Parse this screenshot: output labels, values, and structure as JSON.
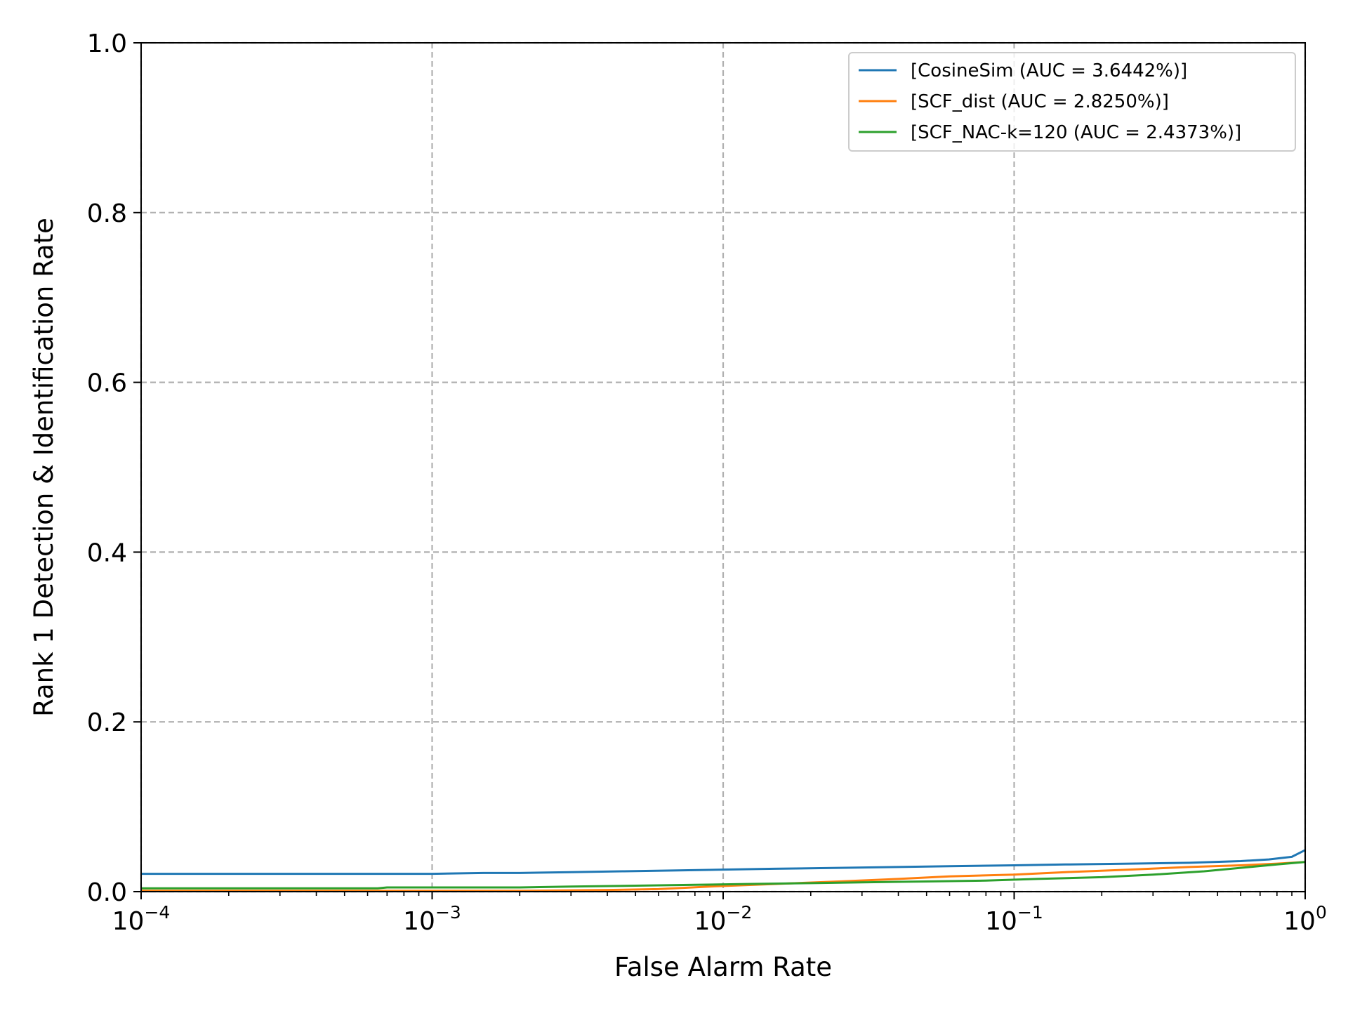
{
  "chart_data": {
    "type": "line",
    "title": "",
    "xlabel": "False Alarm Rate",
    "ylabel": "Rank 1 Detection & Identification Rate",
    "xscale": "log",
    "xlim": [
      0.0001,
      1
    ],
    "ylim": [
      0.0,
      1.0
    ],
    "x_ticks": [
      {
        "value": 0.0001,
        "base": "10",
        "exp": "−4"
      },
      {
        "value": 0.001,
        "base": "10",
        "exp": "−3"
      },
      {
        "value": 0.01,
        "base": "10",
        "exp": "−2"
      },
      {
        "value": 0.1,
        "base": "10",
        "exp": "−1"
      },
      {
        "value": 1,
        "base": "10",
        "exp": "0"
      }
    ],
    "y_ticks": [
      {
        "value": 0.0,
        "label": "0.0"
      },
      {
        "value": 0.2,
        "label": "0.2"
      },
      {
        "value": 0.4,
        "label": "0.4"
      },
      {
        "value": 0.6,
        "label": "0.6"
      },
      {
        "value": 0.8,
        "label": "0.8"
      },
      {
        "value": 1.0,
        "label": "1.0"
      }
    ],
    "grid": true,
    "legend_position": "top-right",
    "series": [
      {
        "name": "[CosineSim (AUC = 3.6442%)]",
        "color": "#1f77b4",
        "x": [
          0.0001,
          0.0003,
          0.001,
          0.0015,
          0.002,
          0.003,
          0.0045,
          0.007,
          0.01,
          0.015,
          0.025,
          0.04,
          0.06,
          0.1,
          0.15,
          0.25,
          0.4,
          0.6,
          0.75,
          0.9,
          1.0
        ],
        "y": [
          0.021,
          0.021,
          0.021,
          0.022,
          0.022,
          0.023,
          0.024,
          0.025,
          0.026,
          0.027,
          0.028,
          0.029,
          0.03,
          0.031,
          0.032,
          0.033,
          0.034,
          0.036,
          0.038,
          0.041,
          0.049
        ]
      },
      {
        "name": "[SCF_dist (AUC = 2.8250%)]",
        "color": "#ff7f0e",
        "x": [
          0.0001,
          0.001,
          0.002,
          0.004,
          0.006,
          0.009,
          0.015,
          0.025,
          0.04,
          0.06,
          0.1,
          0.15,
          0.25,
          0.4,
          0.6,
          0.8,
          1.0
        ],
        "y": [
          0.001,
          0.001,
          0.001,
          0.002,
          0.003,
          0.006,
          0.009,
          0.012,
          0.015,
          0.018,
          0.02,
          0.023,
          0.026,
          0.029,
          0.031,
          0.033,
          0.035
        ]
      },
      {
        "name": "[SCF_NAC-k=120 (AUC = 2.4373%)]",
        "color": "#2ca02c",
        "x": [
          0.0001,
          0.00065,
          0.0007,
          0.002,
          0.003,
          0.005,
          0.008,
          0.012,
          0.02,
          0.03,
          0.05,
          0.08,
          0.12,
          0.2,
          0.3,
          0.45,
          0.6,
          0.8,
          1.0
        ],
        "y": [
          0.004,
          0.004,
          0.005,
          0.005,
          0.006,
          0.007,
          0.008,
          0.009,
          0.01,
          0.011,
          0.012,
          0.013,
          0.015,
          0.017,
          0.02,
          0.024,
          0.028,
          0.032,
          0.035
        ]
      }
    ]
  }
}
